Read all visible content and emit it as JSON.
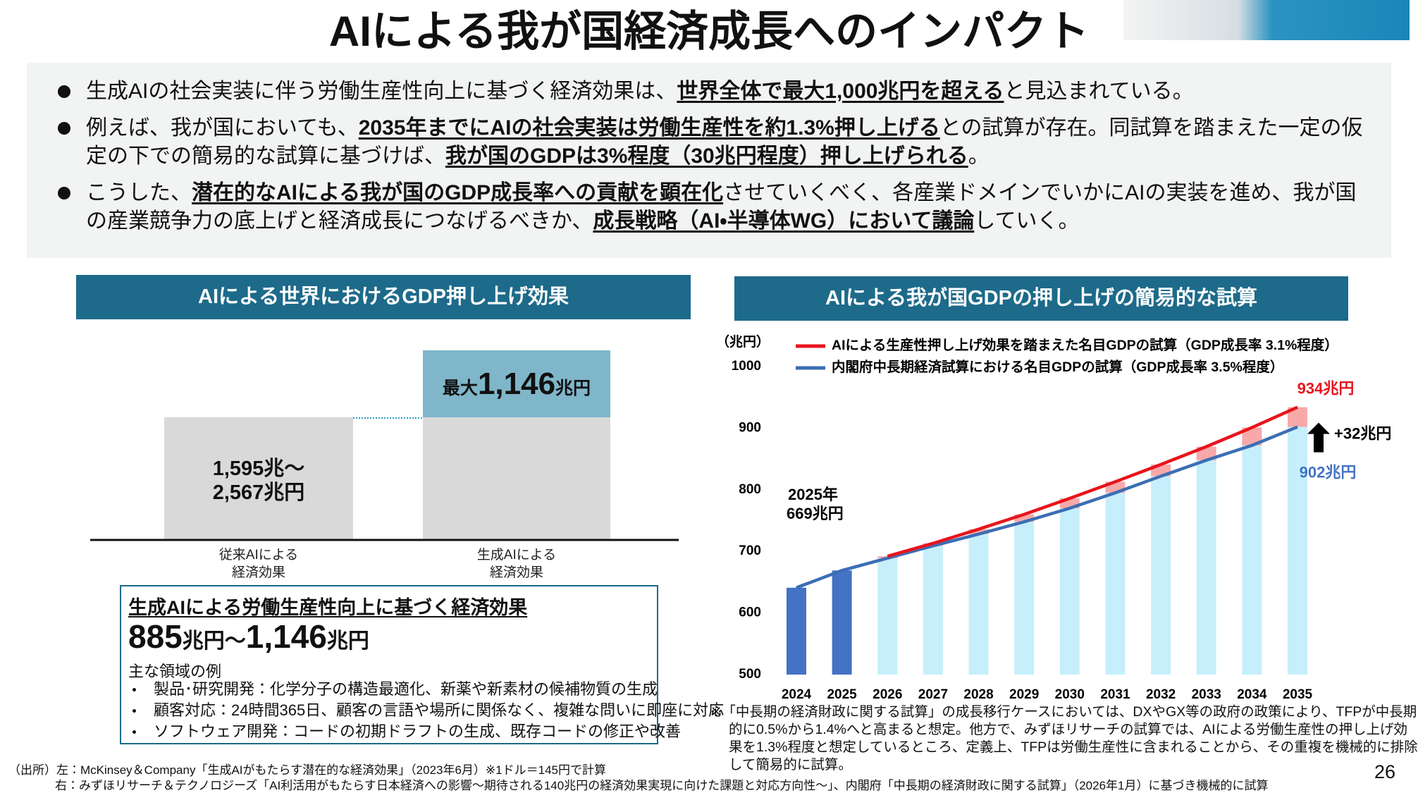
{
  "title": "AIによる我が国経済成長へのインパクト",
  "bullets": [
    {
      "segments": [
        {
          "text": "生成AIの社会実装に伴う労働生産性向上に基づく経済効果は、",
          "em": false
        },
        {
          "text": "世界全体で最大1,000兆円を超える",
          "em": true
        },
        {
          "text": "と見込まれている。",
          "em": false
        }
      ]
    },
    {
      "segments": [
        {
          "text": "例えば、我が国においても、",
          "em": false
        },
        {
          "text": "2035年までにAIの社会実装は労働生産性を約1.3%押し上げる",
          "em": true
        },
        {
          "text": "との試算が存在。同試算を踏まえた一定の仮定の下での簡易的な試算に基づけば、",
          "em": false
        },
        {
          "text": "我が国のGDPは3%程度（30兆円程度）押し上げられる",
          "em": true
        },
        {
          "text": "。",
          "em": false
        }
      ]
    },
    {
      "segments": [
        {
          "text": "こうした、",
          "em": false
        },
        {
          "text": "潜在的なAIによる我が国のGDP成長率への貢献を顕在化",
          "em": true
        },
        {
          "text": "させていくべく、各産業ドメインでいかにAIの実装を進め、我が国の産業競争力の底上げと経済成長につなげるべきか、",
          "em": false
        },
        {
          "text": "成長戦略（AI・半導体WG）において議論",
          "em": true
        },
        {
          "text": "していく。",
          "em": false
        }
      ]
    }
  ],
  "left_panel": {
    "header": "AIによる世界におけるGDP押し上げ効果",
    "bars": [
      {
        "label_lines": [
          "1,595兆～",
          "2,567兆円"
        ],
        "category_lines": [
          "従来AIによる",
          "経済効果"
        ]
      },
      {
        "label_parts": [
          "最大",
          "1,146",
          "兆円"
        ],
        "category_lines": [
          "生成AIによる",
          "経済効果"
        ]
      }
    ],
    "box": {
      "title": "生成AIによる労働生産性向上に基づく経済効果",
      "range_parts": [
        "885",
        "兆円～",
        "1,146",
        "兆円"
      ],
      "subtitle": "主な領域の例",
      "items": [
        "製品･研究開発：化学分子の構造最適化、新薬や新素材の候補物質の生成",
        "顧客対応：24時間365日、顧客の言語や場所に関係なく、複雑な問いに即座に対応",
        "ソフトウェア開発：コードの初期ドラフトの生成、既存コードの修正や改善"
      ]
    }
  },
  "chart_data": {
    "type": "bar_line",
    "title": "AIによる我が国GDPの押し上げの簡易的な試算",
    "y_unit": "（兆円）",
    "categories": [
      "2024",
      "2025",
      "2026",
      "2027",
      "2028",
      "2029",
      "2030",
      "2031",
      "2032",
      "2033",
      "2034",
      "2035"
    ],
    "ylim": [
      500,
      1000
    ],
    "yticks": [
      500,
      600,
      700,
      800,
      900,
      1000
    ],
    "bar_colors": [
      "#4472c4",
      "#4472c4",
      "#c6effb",
      "#c6effb",
      "#c6effb",
      "#c6effb",
      "#c6effb",
      "#c6effb",
      "#c6effb",
      "#c6effb",
      "#c6effb",
      "#c6effb"
    ],
    "increment_color": "#f7a9a9",
    "series": [
      {
        "name": "AIによる生産性押し上げ効果を踏まえた名目GDPの試算（GDP成長率 3.1%程度）",
        "color": "#e8141c",
        "values": [
          null,
          null,
          692,
          713,
          736,
          760,
          786,
          813,
          841,
          870,
          901,
          934
        ]
      },
      {
        "name": "内閣府中長期経済試算における名目GDPの試算（GDP成長率 3.5%程度）",
        "color": "#3c6eb4",
        "values": [
          641,
          669,
          689,
          709,
          728,
          748,
          770,
          795,
          822,
          848,
          872,
          902
        ]
      }
    ],
    "annotations": {
      "start_year": "2025年",
      "start_value_label": "669兆円",
      "end_label_red": "934兆円",
      "end_label_blue": "902兆円",
      "difference_label": "+32兆円"
    }
  },
  "footnote": "※「中長期の経済財政に関する試算」の成長移行ケースにおいては、DXやGX等の政府の政策により、TFPが中長期的に0.5%から1.4%へと高まると想定。他方で、みずほリサーチの試算では、AIによる労働生産性の押し上げ効果を1.3%程度と想定しているところ、定義上、TFPは労働生産性に含まれることから、その重複を機械的に排除して簡易的に試算。",
  "sources": [
    "（出所）左：McKinsey＆Company「生成AIがもたらす潜在的な経済効果」（2023年6月）※1ドル＝145円で計算",
    "右：みずほリサーチ＆テクノロジーズ「AI利活用がもたらす日本経済への影響～期待される140兆円の経済効果実現に向けた課題と対応方向性～」、内閣府「中長期の経済財政に関する試算」（2026年1月）に基づき機械的に試算"
  ],
  "page_number": "26"
}
